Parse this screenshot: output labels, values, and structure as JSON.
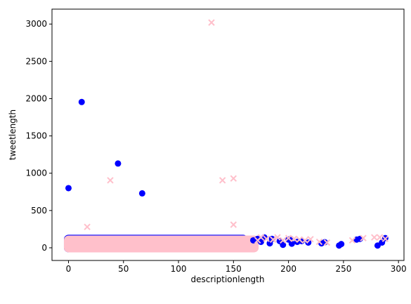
{
  "chart_data": {
    "type": "scatter",
    "xlabel": "descriptionlength",
    "ylabel": "tweetlength",
    "xlim": [
      -15,
      305
    ],
    "ylim": [
      -170,
      3200
    ],
    "xticks": [
      0,
      50,
      100,
      150,
      200,
      250,
      300
    ],
    "yticks": [
      0,
      500,
      1000,
      1500,
      2000,
      2500,
      3000
    ],
    "grid": false,
    "legend": "none",
    "series": [
      {
        "marker": "circle",
        "color": "#0000ff",
        "band": {
          "x_range": [
            0,
            160
          ],
          "y_range": [
            0,
            170
          ]
        },
        "points": [
          [
            0,
            800
          ],
          [
            12,
            1955
          ],
          [
            45,
            1130
          ],
          [
            67,
            730
          ],
          [
            168,
            100
          ],
          [
            172,
            120
          ],
          [
            175,
            80
          ],
          [
            178,
            140
          ],
          [
            183,
            60
          ],
          [
            185,
            120
          ],
          [
            192,
            90
          ],
          [
            195,
            40
          ],
          [
            200,
            110
          ],
          [
            202,
            120
          ],
          [
            203,
            55
          ],
          [
            208,
            80
          ],
          [
            212,
            90
          ],
          [
            218,
            70
          ],
          [
            230,
            60
          ],
          [
            233,
            75
          ],
          [
            246,
            30
          ],
          [
            248,
            50
          ],
          [
            262,
            110
          ],
          [
            265,
            120
          ],
          [
            281,
            30
          ],
          [
            285,
            70
          ],
          [
            288,
            130
          ]
        ]
      },
      {
        "marker": "x",
        "color": "#ffc0cb",
        "band": {
          "x_range": [
            0,
            170
          ],
          "y_range": [
            0,
            160
          ]
        },
        "points": [
          [
            130,
            3020
          ],
          [
            38,
            905
          ],
          [
            140,
            905
          ],
          [
            150,
            930
          ],
          [
            150,
            310
          ],
          [
            17,
            280
          ],
          [
            172,
            100
          ],
          [
            175,
            140
          ],
          [
            180,
            120
          ],
          [
            186,
            110
          ],
          [
            190,
            140
          ],
          [
            195,
            100
          ],
          [
            200,
            130
          ],
          [
            205,
            120
          ],
          [
            210,
            110
          ],
          [
            215,
            100
          ],
          [
            220,
            115
          ],
          [
            228,
            80
          ],
          [
            235,
            70
          ],
          [
            258,
            100
          ],
          [
            268,
            130
          ],
          [
            278,
            140
          ],
          [
            283,
            140
          ],
          [
            288,
            120
          ]
        ]
      }
    ]
  }
}
